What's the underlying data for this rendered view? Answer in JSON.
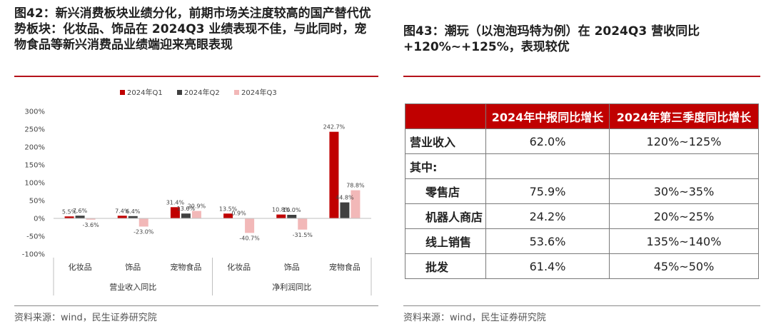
{
  "left": {
    "title": "图42：新兴消费板块业绩分化，前期市场关注度较高的国产替代优势板块：化妆品、饰品在 2024Q3 业绩表现不佳，与此同时，宠物食品等新兴消费品业绩端迎来亮眼表现",
    "source": "资料来源：wind，民生证券研究院"
  },
  "right": {
    "title": "图43：潮玩（以泡泡玛特为例）在 2024Q3 营收同比+120%~+125%，表现较优",
    "source": "资料来源：wind，民生证券研究院",
    "table": {
      "headers": [
        "",
        "2024年中报同比增长",
        "2024年第三季度同比增长"
      ],
      "rows": [
        {
          "label": "营业收入",
          "h1": "62.0%",
          "q3": "120%~125%"
        },
        {
          "label": "其中:",
          "h1": "",
          "q3": ""
        },
        {
          "label": "零售店",
          "h1": "75.9%",
          "q3": "30%~35%"
        },
        {
          "label": "机器人商店",
          "h1": "24.2%",
          "q3": "20%~25%"
        },
        {
          "label": "线上销售",
          "h1": "53.6%",
          "q3": "135%~140%"
        },
        {
          "label": "批发",
          "h1": "61.4%",
          "q3": "45%~50%"
        }
      ]
    }
  },
  "colors": {
    "accent_red": "#b5121b",
    "q1": "#c00000",
    "q2": "#404040",
    "q3": "#f2b8b8",
    "table_header": "#c00000"
  },
  "chart_data": {
    "type": "bar",
    "title": "",
    "categories": [
      "化妆品",
      "饰品",
      "宠物食品",
      "化妆品",
      "饰品",
      "宠物食品"
    ],
    "groups": [
      {
        "label": "营业收入同比",
        "categories": [
          "化妆品",
          "饰品",
          "宠物食品"
        ]
      },
      {
        "label": "净利润同比",
        "categories": [
          "化妆品",
          "饰品",
          "宠物食品"
        ]
      }
    ],
    "series": [
      {
        "name": "2024年Q1",
        "values": [
          5.5,
          7.4,
          31.4,
          13.5,
          10.8,
          242.7
        ],
        "labels": [
          "5.5%",
          "7.4%",
          "31.4%",
          "13.5%",
          "10.8%",
          "242.7%"
        ]
      },
      {
        "name": "2024年Q2",
        "values": [
          7.6,
          6.4,
          13.6,
          0.9,
          10.0,
          44.8
        ],
        "labels": [
          "7.6%",
          "6.4%",
          "13.6%",
          "0.9%",
          "10.0%",
          "44.8%"
        ]
      },
      {
        "name": "2024年Q3",
        "values": [
          -3.6,
          -23.0,
          20.9,
          -40.7,
          -31.5,
          78.8
        ],
        "labels": [
          "-3.6%",
          "-23.0%",
          "20.9%",
          "-40.7%",
          "-31.5%",
          "78.8%"
        ]
      }
    ],
    "yticks": [
      "300%",
      "250%",
      "200%",
      "150%",
      "100%",
      "50%",
      "0%",
      "-50%",
      "-100%"
    ],
    "ylim": [
      -100,
      300
    ],
    "xlabel": "",
    "ylabel": "",
    "legend_position": "top",
    "grid": false
  }
}
